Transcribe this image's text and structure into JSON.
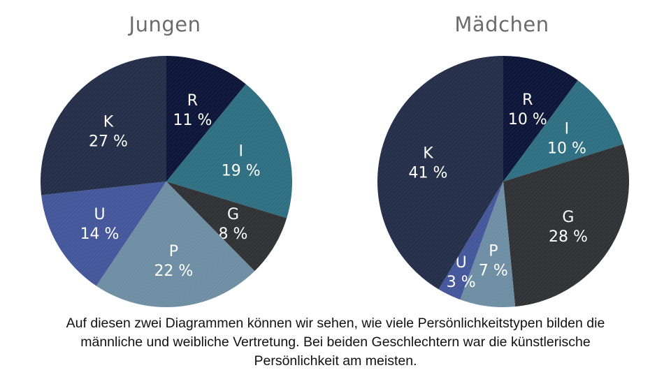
{
  "colors": {
    "R": "#0d1638",
    "I": "#2f6f82",
    "G": "#303236",
    "P": "#6e8ea4",
    "U": "#44579a",
    "K": "#252f4a"
  },
  "chart_data": [
    {
      "type": "pie",
      "title": "Jungen",
      "slices": [
        {
          "label": "R",
          "value": 11,
          "text": "11 %"
        },
        {
          "label": "I",
          "value": 19,
          "text": "19 %"
        },
        {
          "label": "G",
          "value": 8,
          "text": "8 %"
        },
        {
          "label": "P",
          "value": 22,
          "text": "22 %"
        },
        {
          "label": "U",
          "value": 14,
          "text": "14 %"
        },
        {
          "label": "K",
          "value": 27,
          "text": "27 %"
        }
      ]
    },
    {
      "type": "pie",
      "title": "Mädchen",
      "slices": [
        {
          "label": "R",
          "value": 10,
          "text": "10 %"
        },
        {
          "label": "I",
          "value": 10,
          "text": "10 %"
        },
        {
          "label": "G",
          "value": 28,
          "text": "28 %"
        },
        {
          "label": "P",
          "value": 7,
          "text": "7 %"
        },
        {
          "label": "U",
          "value": 3,
          "text": "3 %"
        },
        {
          "label": "K",
          "value": 41,
          "text": "41 %"
        }
      ]
    }
  ],
  "caption": {
    "line1": "Auf diesen zwei Diagrammen können wir sehen, wie viele Persönlichkeitstypen bilden die",
    "line2": "männliche und weibliche Vertretung. Bei beiden Geschlechtern war die künstlerische",
    "line3": "Persönlichkeit am meisten."
  }
}
